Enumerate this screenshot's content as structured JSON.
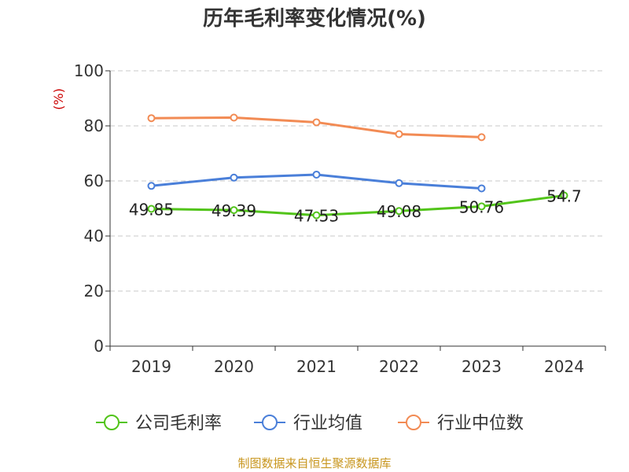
{
  "chart_data": {
    "type": "line",
    "title": "历年毛利率变化情况(%)",
    "ylabel": "(%)",
    "xlabel": "",
    "categories": [
      "2019",
      "2020",
      "2021",
      "2022",
      "2023",
      "2024"
    ],
    "ylim": [
      0,
      100
    ],
    "yticks": [
      0,
      20,
      40,
      60,
      80,
      100
    ],
    "grid": true,
    "legend_position": "bottom",
    "series": [
      {
        "name": "公司毛利率",
        "color": "#52c41a",
        "values": [
          49.85,
          49.39,
          47.53,
          49.08,
          50.76,
          54.7
        ],
        "labels": [
          "49.85",
          "49.39",
          "47.53",
          "49.08",
          "50.76",
          "54.7"
        ]
      },
      {
        "name": "行业均值",
        "color": "#4a7fd9",
        "values": [
          58.2,
          61.2,
          62.3,
          59.2,
          57.3,
          null
        ]
      },
      {
        "name": "行业中位数",
        "color": "#f28b54",
        "values": [
          82.8,
          83.0,
          81.3,
          77.0,
          75.9,
          null
        ]
      }
    ]
  },
  "footer": {
    "source": "制图数据来自恒生聚源数据库"
  }
}
